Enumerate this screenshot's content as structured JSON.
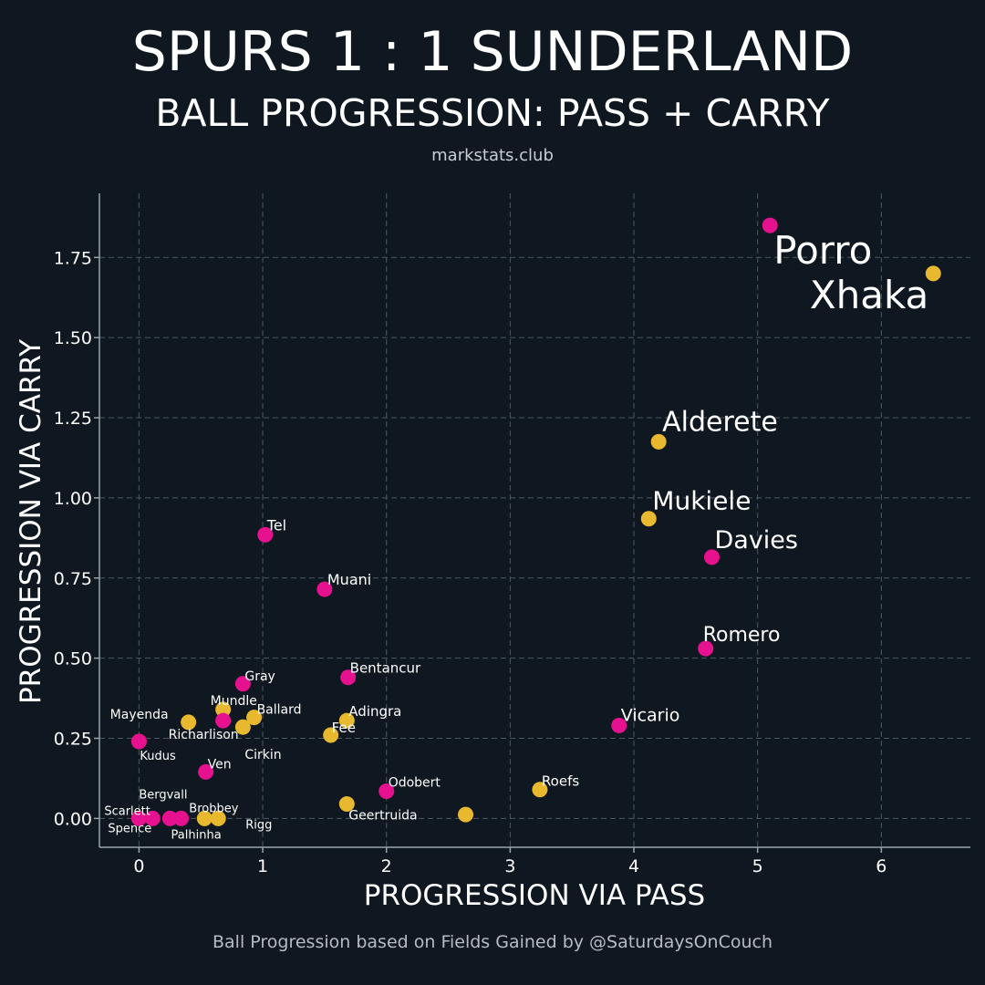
{
  "header": {
    "title": "SPURS 1 : 1 SUNDERLAND",
    "subtitle": "BALL PROGRESSION: PASS + CARRY",
    "site": "markstats.club"
  },
  "footer": {
    "caption": "Ball Progression based on Fields Gained by @SaturdaysOnCouch"
  },
  "colors": {
    "background": "#0f1820",
    "spurs": "#e6118f",
    "sunderland": "#e8b82e",
    "grid": "#4c5862",
    "axis": "#9aa4ab"
  },
  "chart_data": {
    "type": "scatter",
    "xlabel": "PROGRESSION VIA PASS",
    "ylabel": "PROGRESSION VIA CARRY",
    "xlim": [
      -0.32,
      6.72
    ],
    "ylim": [
      -0.09,
      1.95
    ],
    "xticks": [
      0,
      1,
      2,
      3,
      4,
      5,
      6
    ],
    "xtick_labels": [
      "0",
      "1",
      "2",
      "3",
      "4",
      "5",
      "6"
    ],
    "yticks": [
      0,
      0.25,
      0.5,
      0.75,
      1.0,
      1.25,
      1.5,
      1.75
    ],
    "ytick_labels": [
      "0.00",
      "0.25",
      "0.50",
      "0.75",
      "1.00",
      "1.25",
      "1.50",
      "1.75"
    ],
    "grid": true,
    "points": [
      {
        "name": "Porro",
        "x": 5.1,
        "y": 1.85,
        "team": "spurs",
        "size": "large"
      },
      {
        "name": "Xhaka",
        "x": 6.42,
        "y": 1.7,
        "team": "sunderland",
        "size": "large"
      },
      {
        "name": "Alderete",
        "x": 4.2,
        "y": 1.175,
        "team": "sunderland",
        "size": "medium"
      },
      {
        "name": "Mukiele",
        "x": 4.12,
        "y": 0.935,
        "team": "sunderland",
        "size": "medium"
      },
      {
        "name": "Davies",
        "x": 4.63,
        "y": 0.815,
        "team": "spurs",
        "size": "medium"
      },
      {
        "name": "Romero",
        "x": 4.58,
        "y": 0.53,
        "team": "spurs",
        "size": "medium"
      },
      {
        "name": "Vicario",
        "x": 3.88,
        "y": 0.29,
        "team": "spurs",
        "size": "small"
      },
      {
        "name": "Roefs",
        "x": 3.24,
        "y": 0.09,
        "team": "sunderland",
        "size": "small"
      },
      {
        "name": "Tel",
        "x": 1.02,
        "y": 0.885,
        "team": "spurs",
        "size": "small"
      },
      {
        "name": "Muani",
        "x": 1.5,
        "y": 0.715,
        "team": "spurs",
        "size": "small"
      },
      {
        "name": "Bentancur",
        "x": 1.69,
        "y": 0.44,
        "team": "spurs",
        "size": "small"
      },
      {
        "name": "Gray",
        "x": 0.84,
        "y": 0.42,
        "team": "spurs",
        "size": "small"
      },
      {
        "name": "Mundle",
        "x": 0.68,
        "y": 0.34,
        "team": "sunderland",
        "size": "small"
      },
      {
        "name": "Ballard",
        "x": 0.93,
        "y": 0.315,
        "team": "sunderland",
        "size": "small"
      },
      {
        "name": "Mayenda",
        "x": 0.4,
        "y": 0.3,
        "team": "sunderland",
        "size": "small"
      },
      {
        "name": "Richarlison",
        "x": 0.68,
        "y": 0.305,
        "team": "spurs",
        "size": "small"
      },
      {
        "name": "Cirkin",
        "x": 0.84,
        "y": 0.285,
        "team": "sunderland",
        "size": "small"
      },
      {
        "name": "Adingra",
        "x": 1.68,
        "y": 0.305,
        "team": "sunderland",
        "size": "small"
      },
      {
        "name": "Fee",
        "x": 1.55,
        "y": 0.26,
        "team": "sunderland",
        "size": "small"
      },
      {
        "name": "Kudus",
        "x": 0.0,
        "y": 0.24,
        "team": "spurs",
        "size": "small"
      },
      {
        "name": "Ven",
        "x": 0.54,
        "y": 0.145,
        "team": "spurs",
        "size": "small"
      },
      {
        "name": "Odobert",
        "x": 2.0,
        "y": 0.085,
        "team": "spurs",
        "size": "small"
      },
      {
        "name": "Geertruida",
        "x": 1.68,
        "y": 0.045,
        "team": "sunderland",
        "size": "small"
      },
      {
        "name": "",
        "x": 2.64,
        "y": 0.012,
        "team": "sunderland",
        "size": "small"
      },
      {
        "name": "Bergvall",
        "x": 0.25,
        "y": 0.0,
        "team": "spurs",
        "size": "small"
      },
      {
        "name": "Scarlett",
        "x": 0.11,
        "y": 0.0,
        "team": "spurs",
        "size": "small"
      },
      {
        "name": "Spence",
        "x": 0.0,
        "y": 0.0,
        "team": "spurs",
        "size": "small"
      },
      {
        "name": "Palhinha",
        "x": 0.34,
        "y": 0.0,
        "team": "spurs",
        "size": "small"
      },
      {
        "name": "Brobbey",
        "x": 0.53,
        "y": 0.0,
        "team": "sunderland",
        "size": "small"
      },
      {
        "name": "Rigg",
        "x": 0.64,
        "y": 0.0,
        "team": "sunderland",
        "size": "small"
      }
    ]
  }
}
